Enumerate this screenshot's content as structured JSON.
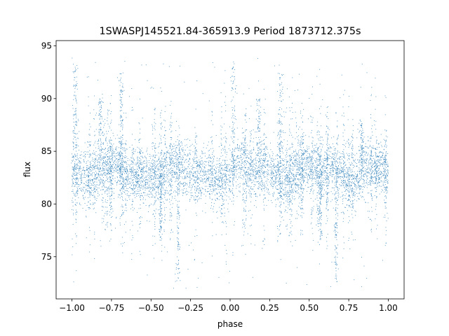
{
  "chart_data": {
    "type": "scatter",
    "title": "1SWASPJ145521.84-365913.9 Period 1873712.375s",
    "xlabel": "phase",
    "ylabel": "flux",
    "xlim": [
      -1.1,
      1.1
    ],
    "ylim": [
      71,
      95.5
    ],
    "xticks": [
      -1.0,
      -0.75,
      -0.5,
      -0.25,
      0.0,
      0.25,
      0.5,
      0.75,
      1.0
    ],
    "xtick_labels": [
      "−1.00",
      "−0.75",
      "−0.50",
      "−0.25",
      "0.00",
      "0.25",
      "0.50",
      "0.75",
      "1.00"
    ],
    "yticks": [
      75,
      80,
      85,
      90,
      95
    ],
    "ytick_labels": [
      "75",
      "80",
      "85",
      "90",
      "95"
    ],
    "grid": false,
    "marker_color": "#1f77b4",
    "series": [
      {
        "baseline": 83.0,
        "bright_features": [
          {
            "x": -0.98,
            "y": 93.5
          },
          {
            "x": -0.82,
            "y": 90.0
          },
          {
            "x": -0.69,
            "y": 92.5
          },
          {
            "x": 0.02,
            "y": 93.5
          },
          {
            "x": 0.18,
            "y": 90.0
          },
          {
            "x": 0.32,
            "y": 92.5
          },
          {
            "x": 0.83,
            "y": 88.0
          }
        ],
        "dips": [
          {
            "x": -0.44,
            "y": 76.5
          },
          {
            "x": -0.33,
            "y": 72.5
          },
          {
            "x": 0.57,
            "y": 76.5
          },
          {
            "x": 0.67,
            "y": 72.5
          }
        ]
      }
    ]
  }
}
